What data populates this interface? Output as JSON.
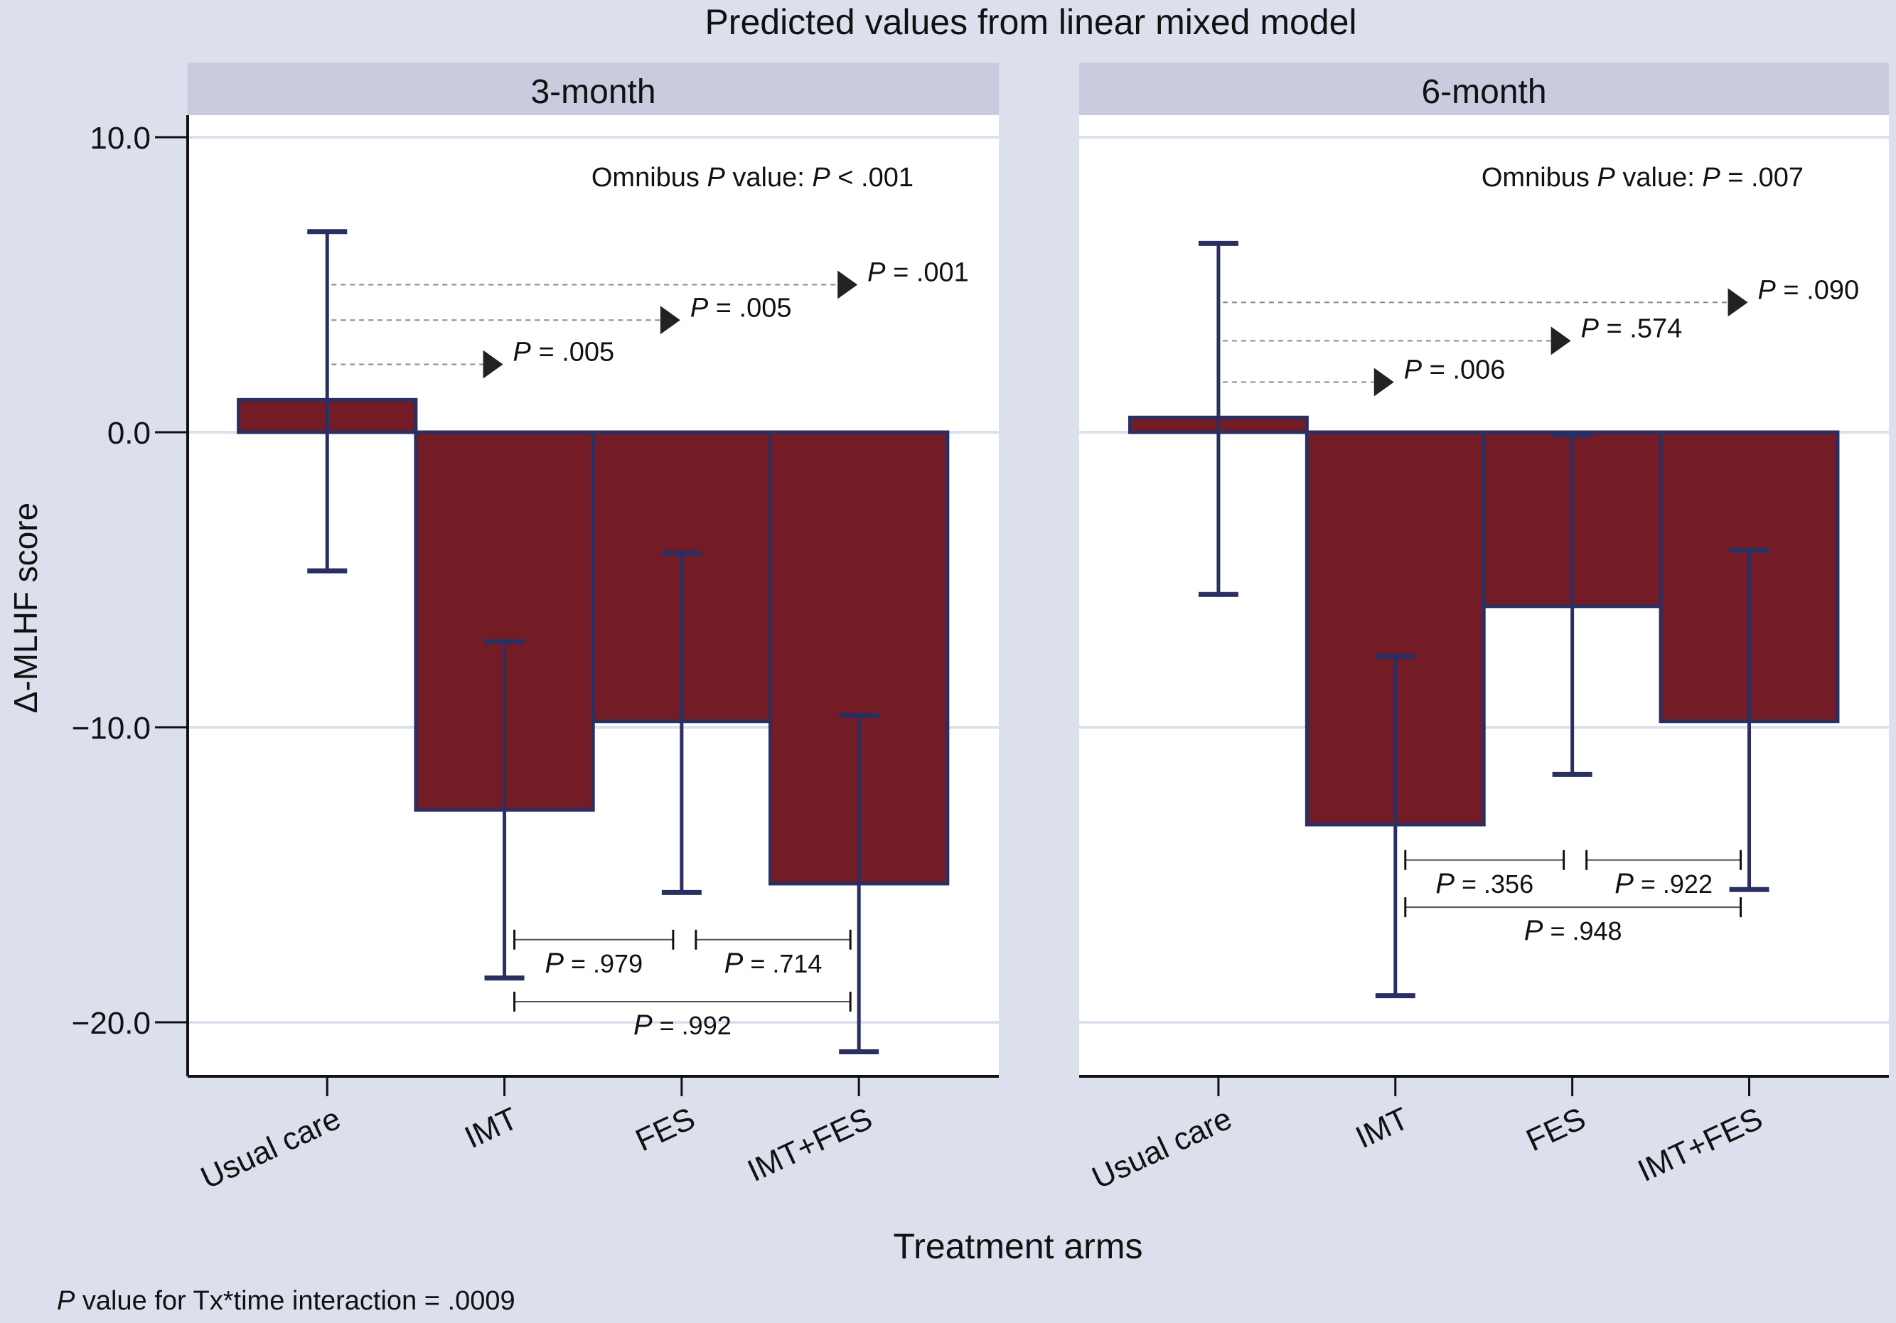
{
  "chart_data": {
    "type": "bar",
    "title": "Predicted values from linear mixed model",
    "xlabel": "Treatment arms",
    "ylabel": "Δ-MLHF score",
    "ylim": [
      -21.5,
      11.5
    ],
    "yticks": [
      10,
      0,
      -10,
      -20
    ],
    "ytick_labels": [
      "10.0",
      "0.0",
      "−10.0",
      "−20.0"
    ],
    "grid": true,
    "categories": [
      "Usual care",
      "IMT",
      "FES",
      "IMT+FES"
    ],
    "footnote": {
      "italic": "P",
      "text": " value for Tx*time interaction = .0009"
    },
    "colors": {
      "bar": "#731c26",
      "outline": "#2a2f62",
      "background": "#dcdfec",
      "strip": "#c9ccdf",
      "grid": "#dcdfec"
    },
    "panels": [
      {
        "label": "3-month",
        "omnibus": {
          "prefix": "Omnibus ",
          "p": "P",
          "mid": " value: ",
          "p2": "P",
          "value": " < .001"
        },
        "values": [
          1.1,
          -12.8,
          -9.8,
          -15.3
        ],
        "ci_upper": [
          6.8,
          -7.1,
          -4.1,
          -9.6
        ],
        "ci_lower": [
          -4.7,
          -18.5,
          -15.6,
          -21.0
        ],
        "vs_usual_care": [
          {
            "to": "IMT",
            "y": 2.3,
            "label": " = .005"
          },
          {
            "to": "FES",
            "y": 3.8,
            "label": " = .005"
          },
          {
            "to": "IMT+FES",
            "y": 5.0,
            "label": " = .001"
          }
        ],
        "pairwise": [
          {
            "from": "IMT",
            "to": "FES",
            "y": -17.2,
            "label": " = .979"
          },
          {
            "from": "FES",
            "to": "IMT+FES",
            "y": -17.2,
            "label": " = .714"
          },
          {
            "from": "IMT",
            "to": "IMT+FES",
            "y": -19.3,
            "label": " = .992"
          }
        ]
      },
      {
        "label": "6-month",
        "omnibus": {
          "prefix": "Omnibus ",
          "p": "P",
          "mid": " value: ",
          "p2": "P",
          "value": " = .007"
        },
        "values": [
          0.5,
          -13.3,
          -5.9,
          -9.8
        ],
        "ci_upper": [
          6.4,
          -7.6,
          -0.1,
          -4.0
        ],
        "ci_lower": [
          -5.5,
          -19.1,
          -11.6,
          -15.5
        ],
        "vs_usual_care": [
          {
            "to": "IMT",
            "y": 1.7,
            "label": " = .006"
          },
          {
            "to": "FES",
            "y": 3.1,
            "label": " = .574"
          },
          {
            "to": "IMT+FES",
            "y": 4.4,
            "label": " = .090"
          }
        ],
        "pairwise": [
          {
            "from": "IMT",
            "to": "FES",
            "y": -14.5,
            "label": " = .356"
          },
          {
            "from": "FES",
            "to": "IMT+FES",
            "y": -14.5,
            "label": " = .922"
          },
          {
            "from": "IMT",
            "to": "IMT+FES",
            "y": -16.1,
            "label": " = .948"
          }
        ]
      }
    ]
  }
}
